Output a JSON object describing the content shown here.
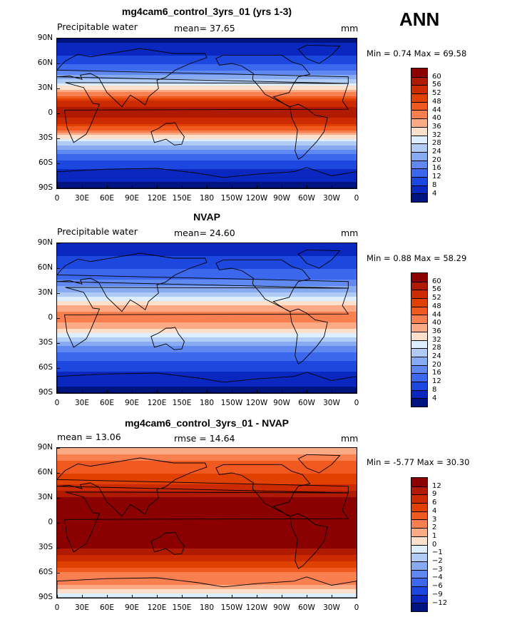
{
  "season": "ANN",
  "panels": [
    {
      "title": "mg4cam6_control_3yrs_01 (yrs 1-3)",
      "left_text": "Precipitable water",
      "center_text": "mean=  37.65",
      "right_text": "mm",
      "minmax": "Min =   0.74 Max =  69.58",
      "lat_labels": [
        "90N",
        "60N",
        "30N",
        "0",
        "30S",
        "60S",
        "90S"
      ],
      "lon_labels": [
        "0",
        "30E",
        "60E",
        "90E",
        "120E",
        "150E",
        "180",
        "150W",
        "120W",
        "90W",
        "60W",
        "30W",
        "0"
      ],
      "colorbar_labels": [
        "60",
        "56",
        "52",
        "48",
        "44",
        "40",
        "36",
        "32",
        "28",
        "24",
        "20",
        "16",
        "12",
        "8",
        "4"
      ],
      "colorbar_colors": [
        "#8b0000",
        "#b01a00",
        "#cc2a00",
        "#e04000",
        "#f05a20",
        "#f87f50",
        "#fbaa86",
        "#fde0cc",
        "#ddeeff",
        "#b0ccf5",
        "#88aaf0",
        "#5f88f0",
        "#3c68ee",
        "#1c48e0",
        "#0a28c0",
        "#001480"
      ]
    },
    {
      "title": "NVAP",
      "left_text": "Precipitable water",
      "center_text": "mean=  24.60",
      "right_text": "mm",
      "minmax": "Min =   0.88 Max =  58.29",
      "lat_labels": [
        "90N",
        "60N",
        "30N",
        "0",
        "30S",
        "60S",
        "90S"
      ],
      "lon_labels": [
        "0",
        "30E",
        "60E",
        "90E",
        "120E",
        "150E",
        "180",
        "150W",
        "120W",
        "90W",
        "60W",
        "30W",
        "0"
      ],
      "colorbar_labels": [
        "60",
        "56",
        "52",
        "48",
        "44",
        "40",
        "36",
        "32",
        "28",
        "24",
        "20",
        "16",
        "12",
        "8",
        "4"
      ],
      "colorbar_colors": [
        "#8b0000",
        "#b01a00",
        "#cc2a00",
        "#e04000",
        "#f05a20",
        "#f87f50",
        "#fbaa86",
        "#fde0cc",
        "#ddeeff",
        "#b0ccf5",
        "#88aaf0",
        "#5f88f0",
        "#3c68ee",
        "#1c48e0",
        "#0a28c0",
        "#001480"
      ]
    },
    {
      "title": "mg4cam6_control_3yrs_01 - NVAP",
      "left_text": "mean =  13.06",
      "center_text": "rmse =  14.64",
      "right_text": "mm",
      "minmax": "Min =  -5.77 Max =  30.30",
      "lat_labels": [
        "90N",
        "60N",
        "30N",
        "0",
        "30S",
        "60S",
        "90S"
      ],
      "lon_labels": [
        "0",
        "30E",
        "60E",
        "90E",
        "120E",
        "150E",
        "180",
        "150W",
        "120W",
        "90W",
        "60W",
        "30W",
        "0"
      ],
      "colorbar_labels": [
        "12",
        "9",
        "6",
        "4",
        "3",
        "2",
        "1",
        "0",
        "−1",
        "−2",
        "−3",
        "−4",
        "−6",
        "−9",
        "−12"
      ],
      "colorbar_colors": [
        "#8b0000",
        "#b01a00",
        "#cc2a00",
        "#e04000",
        "#f05a20",
        "#f87f50",
        "#fbaa86",
        "#fde0cc",
        "#ddeeff",
        "#b0ccf5",
        "#88aaf0",
        "#5f88f0",
        "#3c68ee",
        "#1c48e0",
        "#0a28c0",
        "#001480"
      ]
    }
  ],
  "chart_data": [
    {
      "type": "heatmap",
      "title": "mg4cam6_control_3yrs_01 (yrs 1-3)",
      "variable": "Precipitable water",
      "units": "mm",
      "mean": 37.65,
      "min": 0.74,
      "max": 69.58,
      "y_range": [
        -90,
        90
      ],
      "x_range": [
        0,
        360
      ],
      "levels": [
        4,
        8,
        12,
        16,
        20,
        24,
        28,
        32,
        36,
        40,
        44,
        48,
        52,
        56,
        60
      ],
      "zonal_profile": {
        "lat": [
          90,
          75,
          60,
          45,
          30,
          15,
          0,
          -15,
          -30,
          -45,
          -60,
          -75,
          -90
        ],
        "value": [
          3,
          6,
          12,
          20,
          34,
          52,
          60,
          50,
          32,
          18,
          10,
          6,
          2
        ]
      }
    },
    {
      "type": "heatmap",
      "title": "NVAP",
      "variable": "Precipitable water",
      "units": "mm",
      "mean": 24.6,
      "min": 0.88,
      "max": 58.29,
      "y_range": [
        -90,
        90
      ],
      "x_range": [
        0,
        360
      ],
      "levels": [
        4,
        8,
        12,
        16,
        20,
        24,
        28,
        32,
        36,
        40,
        44,
        48,
        52,
        56,
        60
      ],
      "zonal_profile": {
        "lat": [
          90,
          75,
          60,
          45,
          30,
          15,
          0,
          -15,
          -30,
          -45,
          -60,
          -75,
          -90
        ],
        "value": [
          4,
          8,
          12,
          16,
          24,
          36,
          44,
          34,
          22,
          14,
          9,
          5,
          3
        ]
      }
    },
    {
      "type": "heatmap",
      "title": "mg4cam6_control_3yrs_01 - NVAP",
      "units": "mm",
      "mean": 13.06,
      "rmse": 14.64,
      "min": -5.77,
      "max": 30.3,
      "y_range": [
        -90,
        90
      ],
      "x_range": [
        0,
        360
      ],
      "levels": [
        -12,
        -9,
        -6,
        -4,
        -3,
        -2,
        -1,
        0,
        1,
        2,
        3,
        4,
        6,
        9,
        12
      ],
      "zonal_profile": {
        "lat": [
          90,
          75,
          60,
          45,
          30,
          15,
          0,
          -15,
          -30,
          -45,
          -60,
          -75,
          -90
        ],
        "value": [
          1,
          3,
          4,
          6,
          12,
          16,
          16,
          16,
          12,
          6,
          3,
          2,
          -1
        ]
      }
    }
  ]
}
